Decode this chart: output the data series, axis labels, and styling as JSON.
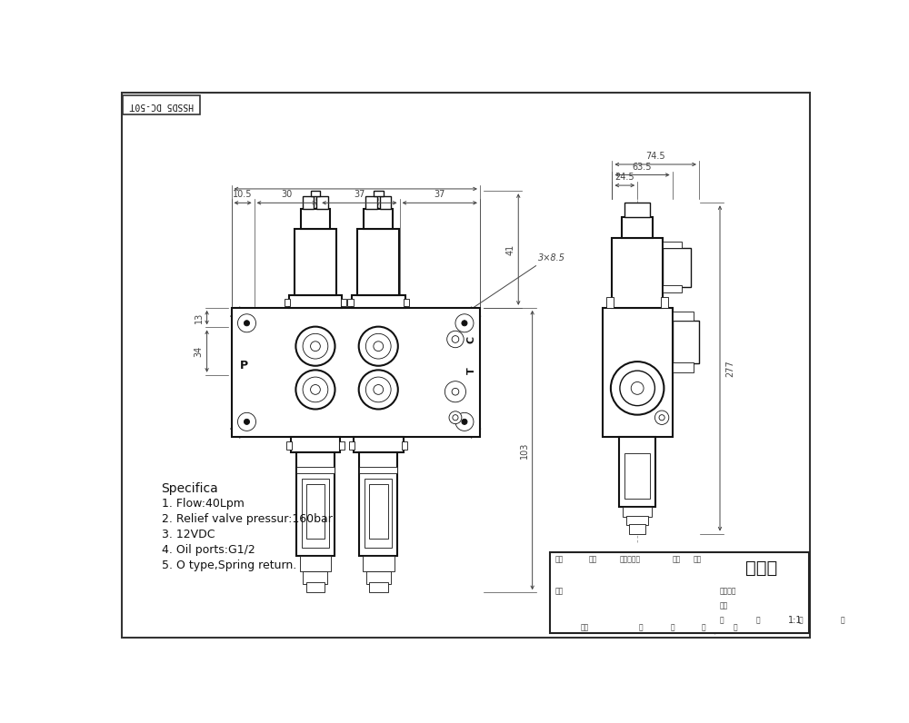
{
  "background_color": "#ffffff",
  "line_color": "#111111",
  "dim_color": "#444444",
  "gray_line": "#888888",
  "title_box_text": "外形图",
  "title_rotated": "HSSD5 DC-50T",
  "spec_title": "Specifica",
  "spec_items": [
    "1. Flow:40Lpm",
    "2. Relief valve pressur:160bar",
    "3. 12VDC",
    "4. Oil ports:G1/2",
    "5. O type,Spring return."
  ],
  "dim_top_labels": [
    "10.5",
    "30",
    "37",
    "37"
  ],
  "dim_right_side_labels": [
    "74.5",
    "63.5",
    "24.5"
  ],
  "dim_side_labels": [
    "13",
    "34",
    "41",
    "103",
    "277"
  ],
  "annotation_label": "3×8.5",
  "port_labels": [
    "P",
    "T",
    "C"
  ],
  "scale_label": "1:1"
}
